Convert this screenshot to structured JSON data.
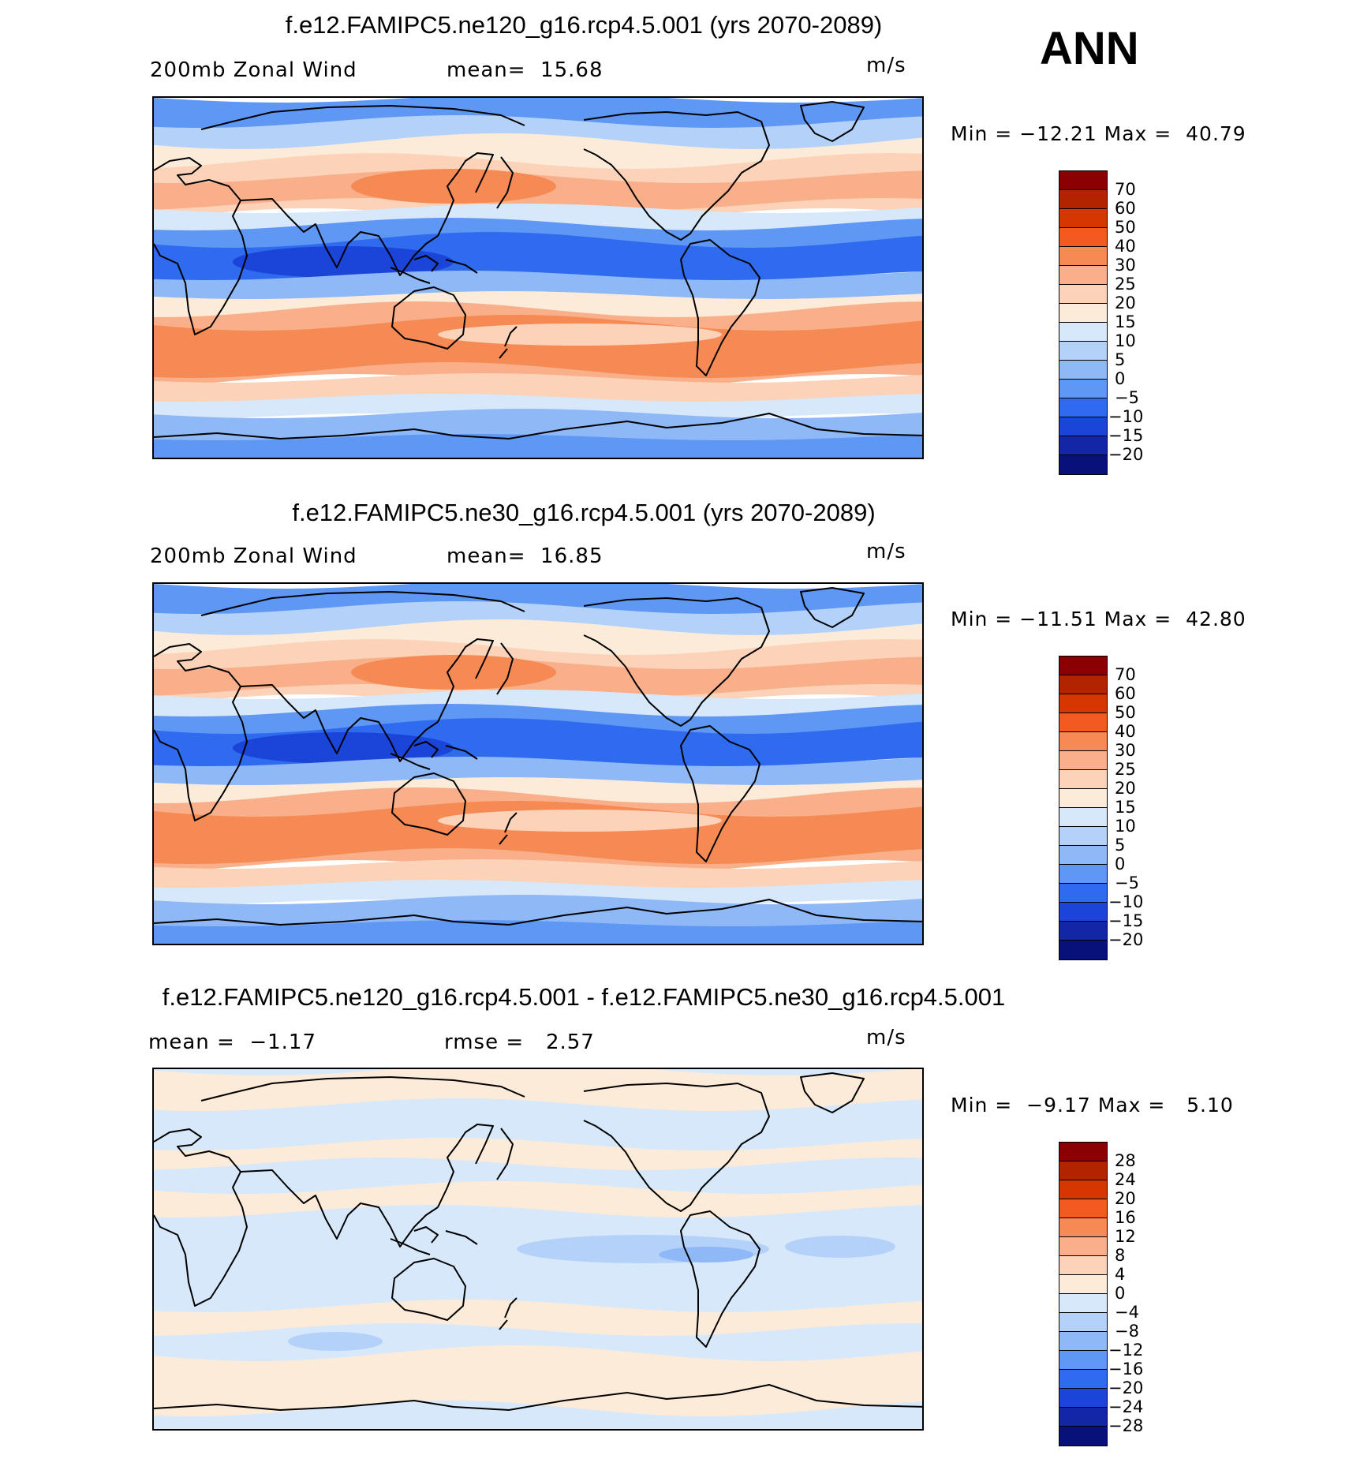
{
  "season": "ANN",
  "panels": [
    {
      "title": "f.e12.FAMIPC5.ne120_g16.rcp4.5.001 (yrs 2070-2089)",
      "left_annotation": "200mb Zonal Wind",
      "mid_annotation": "mean=  15.68",
      "units": "m/s",
      "minmax": "Min = −12.21 Max =  40.79",
      "colorbar_labels": [
        "70",
        "60",
        "50",
        "40",
        "30",
        "25",
        "20",
        "15",
        "10",
        "5",
        "0",
        "−5",
        "−10",
        "−15",
        "−20"
      ],
      "colorbar_colors": [
        "#8b0000",
        "#b22400",
        "#d63600",
        "#f25a22",
        "#f58a54",
        "#f9b08a",
        "#fcd3b8",
        "#fdebd9",
        "#d6e8fa",
        "#b4d2f9",
        "#8fb8f7",
        "#5e97f4",
        "#2f6bee",
        "#1a45d8",
        "#1226a6",
        "#08107a"
      ],
      "map_style": "full"
    },
    {
      "title": "f.e12.FAMIPC5.ne30_g16.rcp4.5.001 (yrs 2070-2089)",
      "left_annotation": "200mb Zonal Wind",
      "mid_annotation": "mean=  16.85",
      "units": "m/s",
      "minmax": "Min = −11.51 Max =  42.80",
      "colorbar_labels": [
        "70",
        "60",
        "50",
        "40",
        "30",
        "25",
        "20",
        "15",
        "10",
        "5",
        "0",
        "−5",
        "−10",
        "−15",
        "−20"
      ],
      "colorbar_colors": [
        "#8b0000",
        "#b22400",
        "#d63600",
        "#f25a22",
        "#f58a54",
        "#f9b08a",
        "#fcd3b8",
        "#fdebd9",
        "#d6e8fa",
        "#b4d2f9",
        "#8fb8f7",
        "#5e97f4",
        "#2f6bee",
        "#1a45d8",
        "#1226a6",
        "#08107a"
      ],
      "map_style": "full"
    },
    {
      "title": "f.e12.FAMIPC5.ne120_g16.rcp4.5.001 - f.e12.FAMIPC5.ne30_g16.rcp4.5.001",
      "left_annotation": "mean =  −1.17",
      "mid_annotation": "rmse =   2.57",
      "units": "m/s",
      "minmax": "Min =  −9.17 Max =   5.10",
      "colorbar_labels": [
        "28",
        "24",
        "20",
        "16",
        "12",
        "8",
        "4",
        "0",
        "−4",
        "−8",
        "−12",
        "−16",
        "−20",
        "−24",
        "−28"
      ],
      "colorbar_colors": [
        "#8b0000",
        "#b22400",
        "#d63600",
        "#f25a22",
        "#f58a54",
        "#f9b08a",
        "#fcd3b8",
        "#fdebd9",
        "#d6e8fa",
        "#b4d2f9",
        "#8fb8f7",
        "#5e97f4",
        "#2f6bee",
        "#1a45d8",
        "#1226a6",
        "#08107a"
      ],
      "map_style": "diff"
    }
  ]
}
